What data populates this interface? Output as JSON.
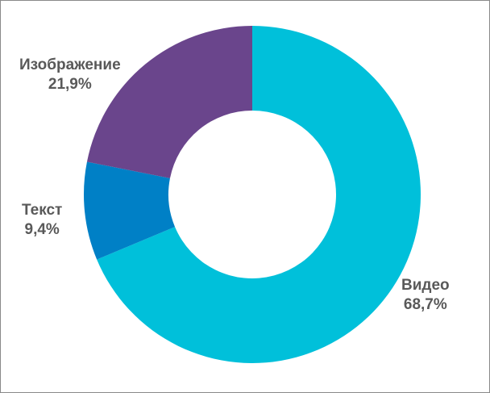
{
  "chart_data": {
    "type": "pie",
    "variant": "donut",
    "title": "",
    "legend": "none",
    "slices": [
      {
        "label": "Видео",
        "value": 68.7,
        "value_label": "68,7%",
        "color": "#00C0DA"
      },
      {
        "label": "Текст",
        "value": 9.4,
        "value_label": "9,4%",
        "color": "#0080C6"
      },
      {
        "label": "Изображение",
        "value": 21.9,
        "value_label": "21,9%",
        "color": "#6A458C"
      }
    ]
  }
}
